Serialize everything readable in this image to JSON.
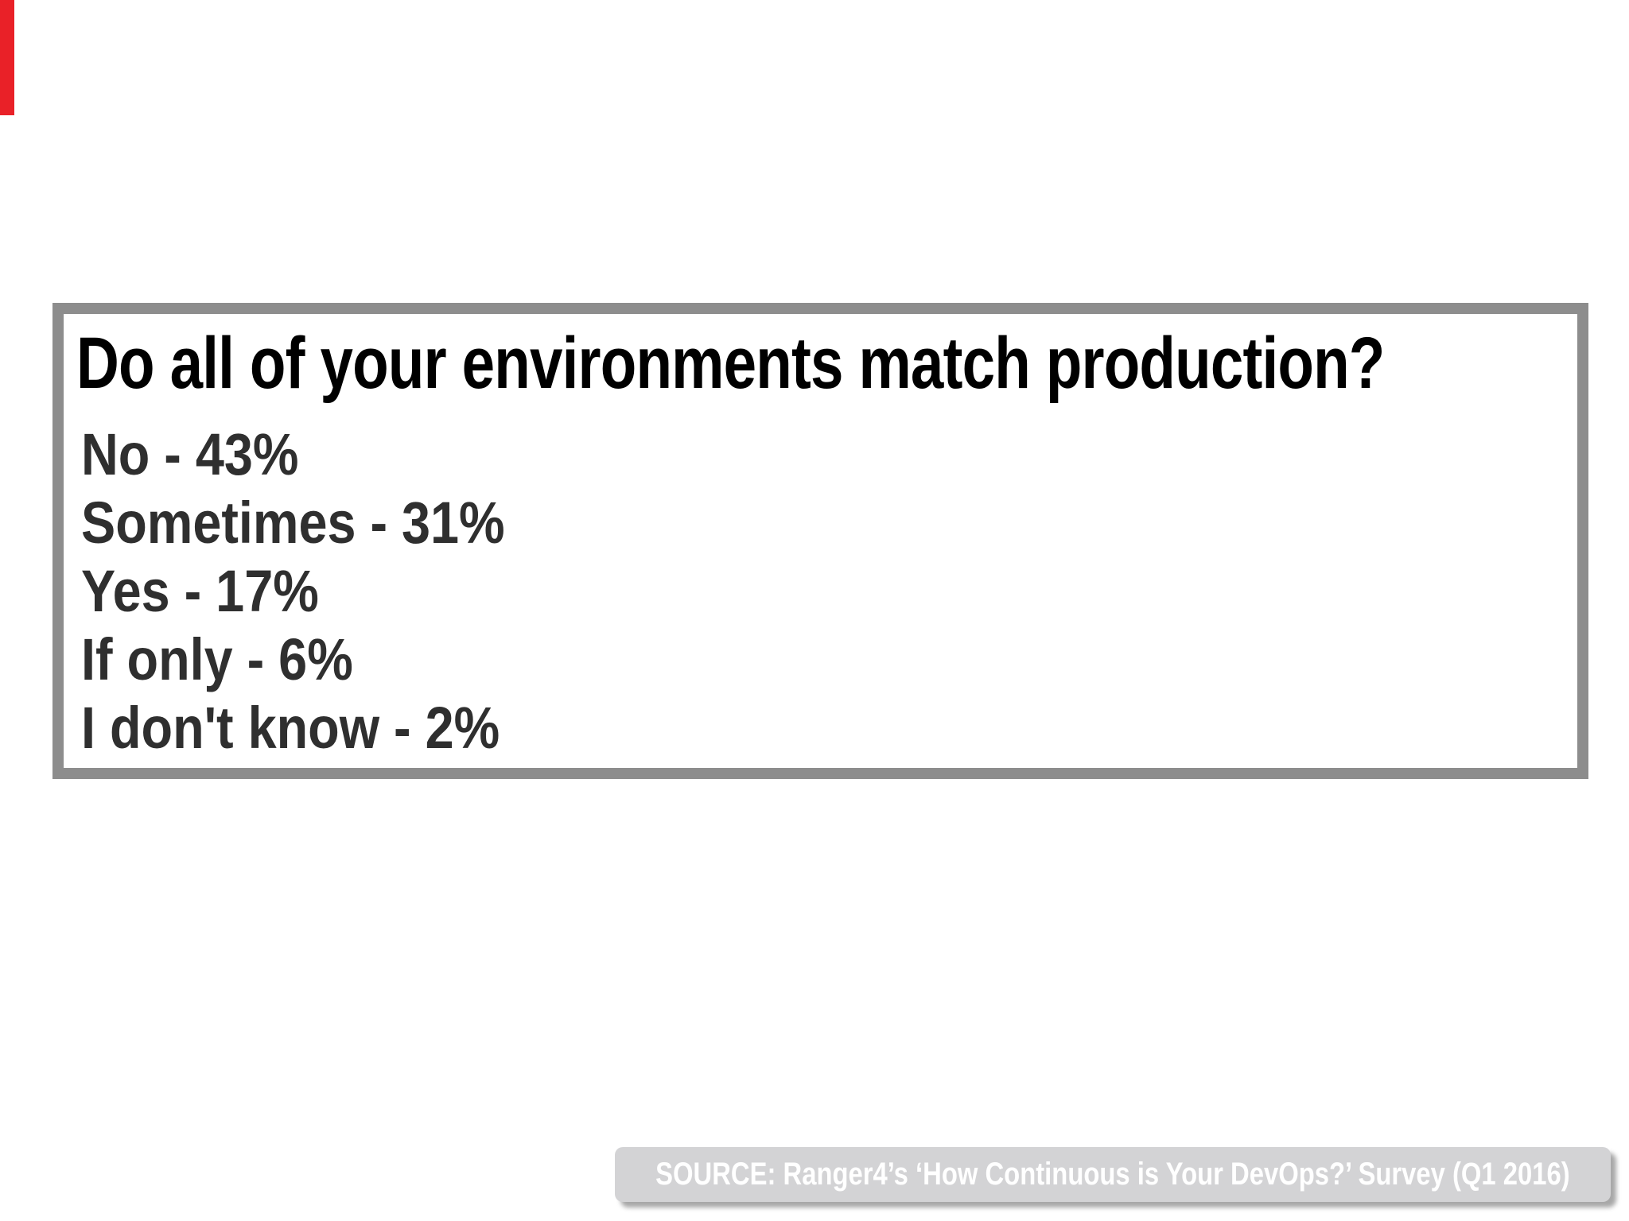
{
  "survey_box": {
    "title": "Do all of your environments match production?",
    "results": [
      {
        "label": "No",
        "separator": "-",
        "value": "43%"
      },
      {
        "label": "Sometimes",
        "separator": "-",
        "value": "31%"
      },
      {
        "label": "Yes",
        "separator": "-",
        "value": "17%"
      },
      {
        "label": "If only",
        "separator": "-",
        "value": "6%"
      },
      {
        "label": "I don't know",
        "separator": "-",
        "value": "2%"
      }
    ]
  },
  "source_badge": {
    "text": "SOURCE: Ranger4’s ‘How Continuous is Your DevOps?’ Survey (Q1 2016)"
  },
  "chart_data": {
    "type": "table",
    "title": "Do all of your environments match production?",
    "categories": [
      "No",
      "Sometimes",
      "Yes",
      "If only",
      "I don't know"
    ],
    "values": [
      43,
      31,
      17,
      6,
      2
    ],
    "value_unit": "%"
  },
  "colors": {
    "page_bg": "#ffffff",
    "red_bar": "#e92128",
    "box_border": "#8d8d8d",
    "title_text": "#000000",
    "result_text": "#2f2f2f",
    "badge_bg": "#d3d3d5",
    "badge_text": "#ffffff",
    "badge_shadow": "#a8a8a8"
  }
}
